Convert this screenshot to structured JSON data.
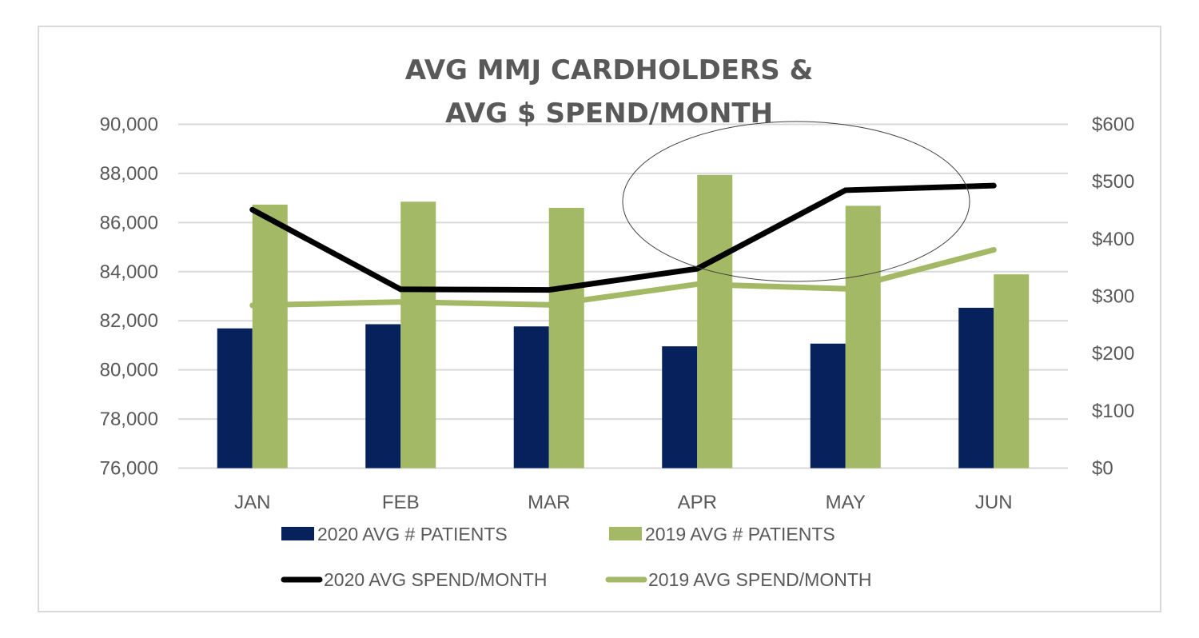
{
  "chart_data": {
    "type": "bar",
    "combo": "bar+line (dual axis)",
    "title": "AVG MMJ CARDHOLDERS & AVG $ SPEND/MONTH",
    "title_lines": [
      "AVG MMJ CARDHOLDERS &",
      "AVG $ SPEND/MONTH"
    ],
    "categories": [
      "JAN",
      "FEB",
      "MAR",
      "APR",
      "MAY",
      "JUN"
    ],
    "xlabel": "",
    "y_left": {
      "label": "",
      "range": [
        76000,
        90000
      ],
      "ticks": [
        76000,
        78000,
        80000,
        82000,
        84000,
        86000,
        88000,
        90000
      ],
      "tick_labels": [
        "76,000",
        "78,000",
        "80,000",
        "82,000",
        "84,000",
        "86,000",
        "88,000",
        "90,000"
      ]
    },
    "y_right": {
      "label": "",
      "range": [
        0,
        600
      ],
      "ticks": [
        0,
        100,
        200,
        300,
        400,
        500,
        600
      ],
      "tick_labels": [
        "$0",
        "$100",
        "$200",
        "$300",
        "$400",
        "$500",
        "$600"
      ]
    },
    "grid": true,
    "legend_position": "bottom",
    "series": [
      {
        "name": "2020 AVG  # PATIENTS",
        "type": "bar",
        "axis": "left",
        "color": "#06215b",
        "values": [
          81690,
          81860,
          81770,
          80960,
          81070,
          82530
        ]
      },
      {
        "name": "2019 AVG  # PATIENTS",
        "type": "bar",
        "axis": "left",
        "color": "#a3b966",
        "values": [
          86730,
          86850,
          86600,
          87940,
          86680,
          83890
        ]
      },
      {
        "name": "2020 AVG SPEND/MONTH",
        "type": "line",
        "axis": "right",
        "color": "#000000",
        "values": [
          451,
          312,
          311,
          348,
          485,
          493
        ]
      },
      {
        "name": "2019 AVG SPEND/MONTH",
        "type": "line",
        "axis": "right",
        "color": "#a3b966",
        "values": [
          284,
          290,
          285,
          321,
          313,
          381
        ]
      }
    ],
    "annotations": [
      {
        "type": "ellipse",
        "description": "hand-drawn circle highlighting APR–JUN",
        "categories_spanned": [
          "APR",
          "MAY",
          "JUN"
        ]
      }
    ]
  },
  "colors": {
    "title": "#595959",
    "tick_text": "#595959",
    "gridline": "#d9d9d9",
    "frame": "#d9d9d9"
  }
}
